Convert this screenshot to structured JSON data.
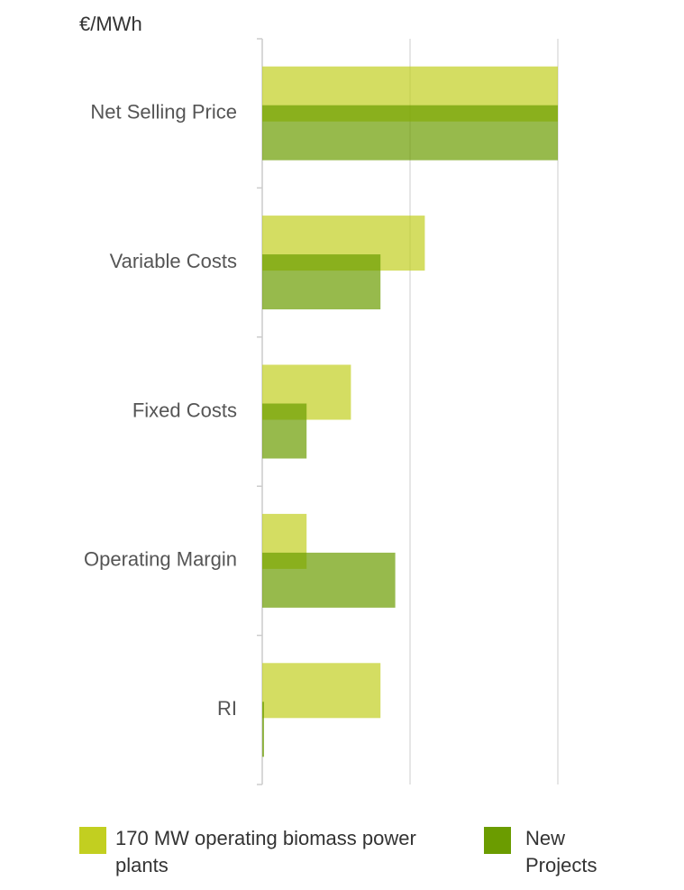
{
  "chart_data": {
    "type": "bar",
    "orientation": "horizontal",
    "unit_label": "€/MWh",
    "categories": [
      "Net Selling Price",
      "Variable Costs",
      "Fixed Costs",
      "Operating Margin",
      "RI"
    ],
    "series": [
      {
        "name": "170 MW operating biomass power plants",
        "color": "#c2cf20",
        "values": [
          2.0,
          1.1,
          0.6,
          0.3,
          0.8
        ]
      },
      {
        "name": "New Projects",
        "color": "#6b9c00",
        "values": [
          2.0,
          0.8,
          0.3,
          0.9,
          0.01
        ]
      }
    ],
    "xlim": [
      0,
      2
    ],
    "xticks": [
      0,
      1,
      2
    ],
    "grid": true
  }
}
